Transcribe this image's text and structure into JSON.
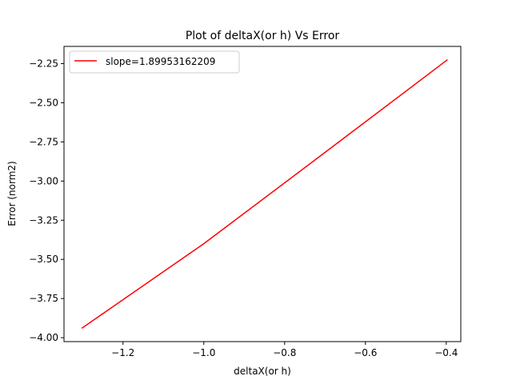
{
  "chart_data": {
    "type": "line",
    "title": "Plot of deltaX(or h) Vs Error",
    "xlabel": "deltaX(or h)",
    "ylabel": "Error (norm2)",
    "xlim": [
      -1.346,
      -0.364
    ],
    "ylim": [
      -4.025,
      -2.14
    ],
    "x_ticks": [
      -1.2,
      -1.0,
      -0.8,
      -0.6,
      -0.4
    ],
    "x_tick_labels": [
      "−1.2",
      "−1.0",
      "−0.8",
      "−0.6",
      "−0.4"
    ],
    "y_ticks": [
      -4.0,
      -3.75,
      -3.5,
      -3.25,
      -3.0,
      -2.75,
      -2.5,
      -2.25
    ],
    "y_tick_labels": [
      "−4.00",
      "−3.75",
      "−3.50",
      "−3.25",
      "−3.00",
      "−2.75",
      "−2.50",
      "−2.25"
    ],
    "grid": false,
    "legend_position": "upper-left",
    "series": [
      {
        "name": "slope=1.89953162209",
        "color": "#ff0000",
        "x": [
          -1.301,
          -1.0,
          -0.699,
          -0.398
        ],
        "y": [
          -3.938,
          -3.4,
          -2.815,
          -2.227
        ]
      }
    ]
  }
}
